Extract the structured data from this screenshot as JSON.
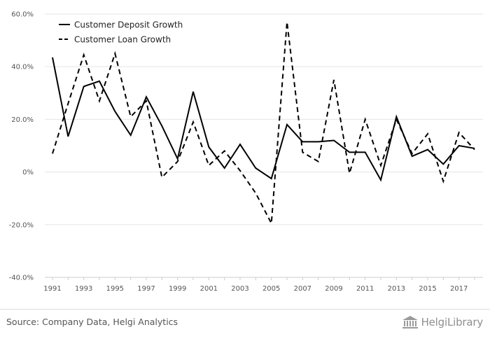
{
  "chart_data": {
    "type": "line",
    "title": "",
    "xlabel": "",
    "ylabel": "",
    "x": [
      1991,
      1992,
      1993,
      1994,
      1995,
      1996,
      1997,
      1998,
      1999,
      2000,
      2001,
      2002,
      2003,
      2004,
      2005,
      2006,
      2007,
      2008,
      2009,
      2010,
      2011,
      2012,
      2013,
      2014,
      2015,
      2016,
      2017,
      2018
    ],
    "x_tick_labels": [
      "1991",
      "1993",
      "1995",
      "1997",
      "1999",
      "2001",
      "2003",
      "2005",
      "2007",
      "2009",
      "2011",
      "2013",
      "2015",
      "2017"
    ],
    "y_tick_labels": [
      "60.0%",
      "40.0%",
      "20.0%",
      "0%",
      "-20.0%",
      "-40.0%"
    ],
    "y_tick_values": [
      60,
      40,
      20,
      0,
      -20,
      -40
    ],
    "ylim": [
      -40,
      60
    ],
    "xlim": [
      1991,
      2018
    ],
    "grid": "horizontal",
    "legend_position": "top-left",
    "series": [
      {
        "name": "Customer Deposit Growth",
        "style": "solid",
        "color": "#000000",
        "values": [
          43.5,
          13.5,
          32.5,
          34.5,
          23,
          14,
          28.5,
          17.5,
          5,
          30.5,
          9.5,
          1.5,
          10.5,
          1.5,
          -2.5,
          18,
          11.5,
          11.5,
          12,
          7.5,
          7.5,
          -3,
          21,
          6,
          8.5,
          3,
          10,
          9
        ]
      },
      {
        "name": "Customer Loan Growth",
        "style": "dashed",
        "color": "#000000",
        "values": [
          7,
          26,
          44.5,
          27,
          45,
          21,
          27,
          -2,
          4,
          19,
          2.5,
          8,
          0.5,
          -8,
          -19.5,
          57,
          7.5,
          4,
          35,
          -0.5,
          20,
          2.5,
          20,
          7,
          14.5,
          -3.5,
          15,
          8.5
        ]
      }
    ]
  },
  "footer": {
    "source": "Source: Company Data, Helgi Analytics"
  },
  "brand": {
    "logo_text": "HelgiLibrary",
    "logo_icon": "library-building-icon"
  }
}
